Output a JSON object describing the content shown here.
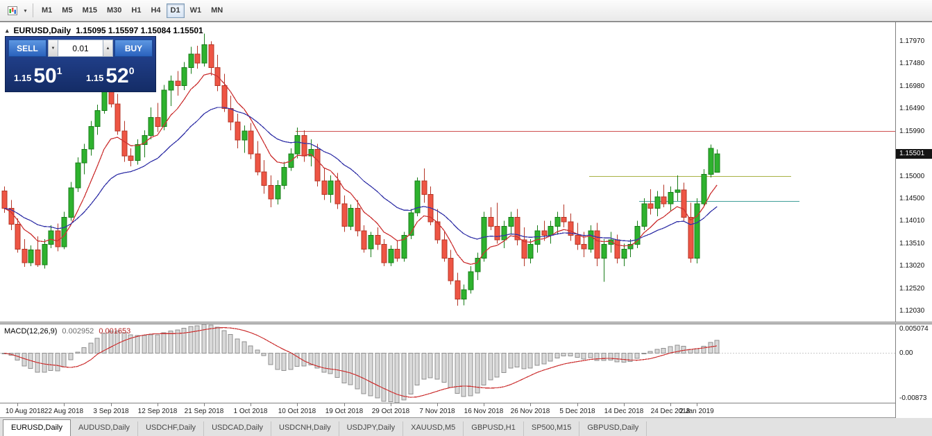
{
  "icons": {
    "chart_type_caret": "▾",
    "panel_collapse": "▴",
    "lot_down": "▼",
    "lot_up": "▲"
  },
  "toolbar": {
    "timeframes": [
      "M1",
      "M5",
      "M15",
      "M30",
      "H1",
      "H4",
      "D1",
      "W1",
      "MN"
    ],
    "active_timeframe": "D1"
  },
  "chart": {
    "title": "EURUSD,Daily",
    "ohlc_text": "1.15095 1.15597 1.15084 1.15501",
    "current_price": "1.15501",
    "price_axis_labels": [
      "1.17970",
      "1.17480",
      "1.16980",
      "1.16490",
      "1.15990",
      "1.15000",
      "1.14500",
      "1.14010",
      "1.13510",
      "1.13020",
      "1.12520",
      "1.12030"
    ],
    "trade_panel": {
      "sell_label": "SELL",
      "buy_label": "BUY",
      "lot_value": "0.01",
      "sell_price": {
        "base": "1.15",
        "big": "50",
        "pip": "1"
      },
      "buy_price": {
        "base": "1.15",
        "big": "52",
        "pip": "0"
      }
    }
  },
  "macd_panel": {
    "name": "MACD(12,26,9)",
    "value_main": "0.002952",
    "value_signal": "0.001653",
    "axis_labels": [
      "0.005074",
      "0.00",
      "-0.00873"
    ]
  },
  "tabs": [
    "EURUSD,Daily",
    "AUDUSD,Daily",
    "USDCHF,Daily",
    "USDCAD,Daily",
    "USDCNH,Daily",
    "USDJPY,Daily",
    "XAUUSD,M5",
    "GBPUSD,H1",
    "SP500,M15",
    "GBPUSD,Daily"
  ],
  "active_tab": "EURUSD,Daily",
  "colors": {
    "candle_up": "#2eb22e",
    "candle_up_border": "#187c18",
    "candle_down": "#ee5544",
    "candle_down_border": "#b53526",
    "ma_fast": "#cc3333",
    "ma_slow": "#3434a8",
    "macd_bar": "#d8d8d8",
    "macd_bar_border": "#8f8f8f",
    "macd_signal": "#cc3333",
    "panel_blue": "#1d3f8e",
    "button_blue": "#2f6fd0",
    "badge_bg": "#141414"
  },
  "chart_data": {
    "type": "candlestick",
    "symbol": "EURUSD",
    "period": "Daily",
    "y_range": [
      1.118,
      1.184
    ],
    "last_bar": {
      "open": 1.15095,
      "high": 1.15597,
      "low": 1.15084,
      "close": 1.15501
    },
    "x_labels": [
      {
        "text": "10 Aug 2018",
        "i": 2
      },
      {
        "text": "22 Aug 2018",
        "i": 9
      },
      {
        "text": "3 Sep 2018",
        "i": 16
      },
      {
        "text": "12 Sep 2018",
        "i": 23
      },
      {
        "text": "21 Sep 2018",
        "i": 30
      },
      {
        "text": "1 Oct 2018",
        "i": 37
      },
      {
        "text": "10 Oct 2018",
        "i": 44
      },
      {
        "text": "19 Oct 2018",
        "i": 51
      },
      {
        "text": "29 Oct 2018",
        "i": 58
      },
      {
        "text": "7 Nov 2018",
        "i": 65
      },
      {
        "text": "16 Nov 2018",
        "i": 72
      },
      {
        "text": "26 Nov 2018",
        "i": 79
      },
      {
        "text": "5 Dec 2018",
        "i": 86
      },
      {
        "text": "14 Dec 2018",
        "i": 93
      },
      {
        "text": "24 Dec 2018",
        "i": 100
      },
      {
        "text": "2 Jan 2019",
        "i": 104
      }
    ],
    "candles": [
      [
        1.1468,
        1.1478,
        1.142,
        1.143
      ],
      [
        1.143,
        1.1448,
        1.1382,
        1.1395
      ],
      [
        1.1395,
        1.1408,
        1.1332,
        1.134
      ],
      [
        1.134,
        1.1362,
        1.1301,
        1.131
      ],
      [
        1.131,
        1.1348,
        1.1302,
        1.1338
      ],
      [
        1.1338,
        1.1368,
        1.1301,
        1.1305
      ],
      [
        1.1305,
        1.1362,
        1.1297,
        1.135
      ],
      [
        1.135,
        1.1392,
        1.1342,
        1.138
      ],
      [
        1.138,
        1.1396,
        1.1335,
        1.1345
      ],
      [
        1.1345,
        1.1422,
        1.134,
        1.141
      ],
      [
        1.141,
        1.1488,
        1.1402,
        1.1475
      ],
      [
        1.1475,
        1.1542,
        1.1466,
        1.153
      ],
      [
        1.153,
        1.1572,
        1.1505,
        1.156
      ],
      [
        1.156,
        1.1622,
        1.1546,
        1.161
      ],
      [
        1.161,
        1.1658,
        1.1592,
        1.1645
      ],
      [
        1.1645,
        1.1702,
        1.1638,
        1.169
      ],
      [
        1.169,
        1.1733,
        1.1652,
        1.166
      ],
      [
        1.166,
        1.1682,
        1.1592,
        1.16
      ],
      [
        1.16,
        1.1622,
        1.1532,
        1.1545
      ],
      [
        1.1545,
        1.1562,
        1.1522,
        1.1535
      ],
      [
        1.1535,
        1.1582,
        1.1526,
        1.157
      ],
      [
        1.157,
        1.1602,
        1.1542,
        1.159
      ],
      [
        1.159,
        1.1652,
        1.1582,
        1.163
      ],
      [
        1.163,
        1.1662,
        1.1598,
        1.161
      ],
      [
        1.161,
        1.1702,
        1.1602,
        1.169
      ],
      [
        1.169,
        1.1722,
        1.1655,
        1.171
      ],
      [
        1.171,
        1.1732,
        1.1678,
        1.17
      ],
      [
        1.17,
        1.1752,
        1.169,
        1.174
      ],
      [
        1.174,
        1.1786,
        1.1726,
        1.177
      ],
      [
        1.177,
        1.1788,
        1.1738,
        1.175
      ],
      [
        1.175,
        1.1815,
        1.1742,
        1.179
      ],
      [
        1.179,
        1.1798,
        1.1722,
        1.174
      ],
      [
        1.174,
        1.1768,
        1.1688,
        1.17
      ],
      [
        1.17,
        1.1726,
        1.1642,
        1.165
      ],
      [
        1.165,
        1.1678,
        1.1602,
        1.162
      ],
      [
        1.162,
        1.1638,
        1.1562,
        1.158
      ],
      [
        1.158,
        1.1612,
        1.1552,
        1.16
      ],
      [
        1.16,
        1.1618,
        1.1538,
        1.155
      ],
      [
        1.155,
        1.1578,
        1.1502,
        1.151
      ],
      [
        1.151,
        1.1536,
        1.1462,
        1.148
      ],
      [
        1.148,
        1.1502,
        1.1432,
        1.145
      ],
      [
        1.145,
        1.1492,
        1.1438,
        1.148
      ],
      [
        1.148,
        1.1532,
        1.1472,
        1.152
      ],
      [
        1.152,
        1.1562,
        1.1512,
        1.155
      ],
      [
        1.155,
        1.1608,
        1.154,
        1.159
      ],
      [
        1.159,
        1.1602,
        1.1532,
        1.1545
      ],
      [
        1.1545,
        1.1582,
        1.1522,
        1.156
      ],
      [
        1.156,
        1.1572,
        1.1478,
        1.149
      ],
      [
        1.149,
        1.1518,
        1.1448,
        1.146
      ],
      [
        1.146,
        1.1502,
        1.1442,
        1.149
      ],
      [
        1.149,
        1.1508,
        1.1428,
        1.144
      ],
      [
        1.144,
        1.1458,
        1.1378,
        1.139
      ],
      [
        1.139,
        1.1438,
        1.1382,
        1.143
      ],
      [
        1.143,
        1.1448,
        1.1368,
        1.138
      ],
      [
        1.138,
        1.1392,
        1.1332,
        1.134
      ],
      [
        1.134,
        1.1378,
        1.1322,
        1.137
      ],
      [
        1.137,
        1.1388,
        1.1338,
        1.135
      ],
      [
        1.135,
        1.1362,
        1.1302,
        1.131
      ],
      [
        1.131,
        1.1348,
        1.1302,
        1.134
      ],
      [
        1.134,
        1.1358,
        1.1312,
        1.132
      ],
      [
        1.132,
        1.1378,
        1.1312,
        1.137
      ],
      [
        1.137,
        1.1428,
        1.1362,
        1.142
      ],
      [
        1.142,
        1.1498,
        1.1412,
        1.149
      ],
      [
        1.149,
        1.1518,
        1.1442,
        1.146
      ],
      [
        1.146,
        1.1478,
        1.1392,
        1.14
      ],
      [
        1.14,
        1.1428,
        1.1352,
        1.136
      ],
      [
        1.136,
        1.1378,
        1.1312,
        1.132
      ],
      [
        1.132,
        1.1338,
        1.1262,
        1.127
      ],
      [
        1.127,
        1.1288,
        1.1215,
        1.123
      ],
      [
        1.123,
        1.1262,
        1.1216,
        1.125
      ],
      [
        1.125,
        1.1302,
        1.1242,
        1.129
      ],
      [
        1.129,
        1.1332,
        1.1272,
        1.132
      ],
      [
        1.132,
        1.1422,
        1.1312,
        1.141
      ],
      [
        1.141,
        1.1432,
        1.1382,
        1.139
      ],
      [
        1.139,
        1.1442,
        1.1352,
        1.136
      ],
      [
        1.136,
        1.1402,
        1.1342,
        1.139
      ],
      [
        1.139,
        1.1422,
        1.1372,
        1.141
      ],
      [
        1.141,
        1.1428,
        1.1348,
        1.136
      ],
      [
        1.136,
        1.1388,
        1.1302,
        1.132
      ],
      [
        1.132,
        1.1362,
        1.1308,
        1.135
      ],
      [
        1.135,
        1.1392,
        1.1332,
        1.138
      ],
      [
        1.138,
        1.1402,
        1.1358,
        1.137
      ],
      [
        1.137,
        1.1402,
        1.1352,
        1.139
      ],
      [
        1.139,
        1.1422,
        1.1372,
        1.141
      ],
      [
        1.141,
        1.1438,
        1.1388,
        1.14
      ],
      [
        1.14,
        1.1418,
        1.1358,
        1.137
      ],
      [
        1.137,
        1.1398,
        1.1338,
        1.135
      ],
      [
        1.135,
        1.1378,
        1.1322,
        1.134
      ],
      [
        1.134,
        1.1392,
        1.1332,
        1.138
      ],
      [
        1.138,
        1.1398,
        1.1302,
        1.132
      ],
      [
        1.132,
        1.1362,
        1.1268,
        1.135
      ],
      [
        1.135,
        1.1378,
        1.1332,
        1.136
      ],
      [
        1.136,
        1.1372,
        1.1308,
        1.132
      ],
      [
        1.132,
        1.1352,
        1.1302,
        1.134
      ],
      [
        1.134,
        1.1362,
        1.1322,
        1.135
      ],
      [
        1.135,
        1.1402,
        1.1342,
        1.139
      ],
      [
        1.139,
        1.1452,
        1.1382,
        1.144
      ],
      [
        1.144,
        1.1472,
        1.1416,
        1.143
      ],
      [
        1.143,
        1.1468,
        1.1412,
        1.1455
      ],
      [
        1.1455,
        1.1482,
        1.1432,
        1.144
      ],
      [
        1.144,
        1.1478,
        1.1424,
        1.1465
      ],
      [
        1.1465,
        1.1502,
        1.1446,
        1.147
      ],
      [
        1.147,
        1.1486,
        1.1402,
        1.141
      ],
      [
        1.141,
        1.1442,
        1.131,
        1.132
      ],
      [
        1.132,
        1.1452,
        1.1308,
        1.144
      ],
      [
        1.144,
        1.1516,
        1.1434,
        1.1505
      ],
      [
        1.1505,
        1.157,
        1.1498,
        1.1562
      ],
      [
        1.15095,
        1.15597,
        1.15084,
        1.15501
      ]
    ],
    "overlays": [
      {
        "name": "ma-fast",
        "type": "ema",
        "period": 8,
        "color_key": "ma_fast"
      },
      {
        "name": "ma-slow",
        "type": "ema",
        "period": 21,
        "color_key": "ma_slow"
      }
    ],
    "hlines": [
      {
        "price": 1.1599,
        "color": "#cf4f4f",
        "x1": 0.33,
        "x2": 1.0,
        "name": "resistance-line-1.15990"
      },
      {
        "price": 1.15,
        "color": "#a8b043",
        "x1": 0.658,
        "x2": 0.884,
        "name": "level-line-1.15000"
      },
      {
        "price": 1.1445,
        "color": "#3f9e99",
        "x1": 0.714,
        "x2": 0.893,
        "name": "level-line-1.14450"
      }
    ],
    "indicator": {
      "type": "MACD",
      "fast": 12,
      "slow": 26,
      "signal": 9,
      "y_range": [
        -0.00873,
        0.005074
      ]
    }
  }
}
